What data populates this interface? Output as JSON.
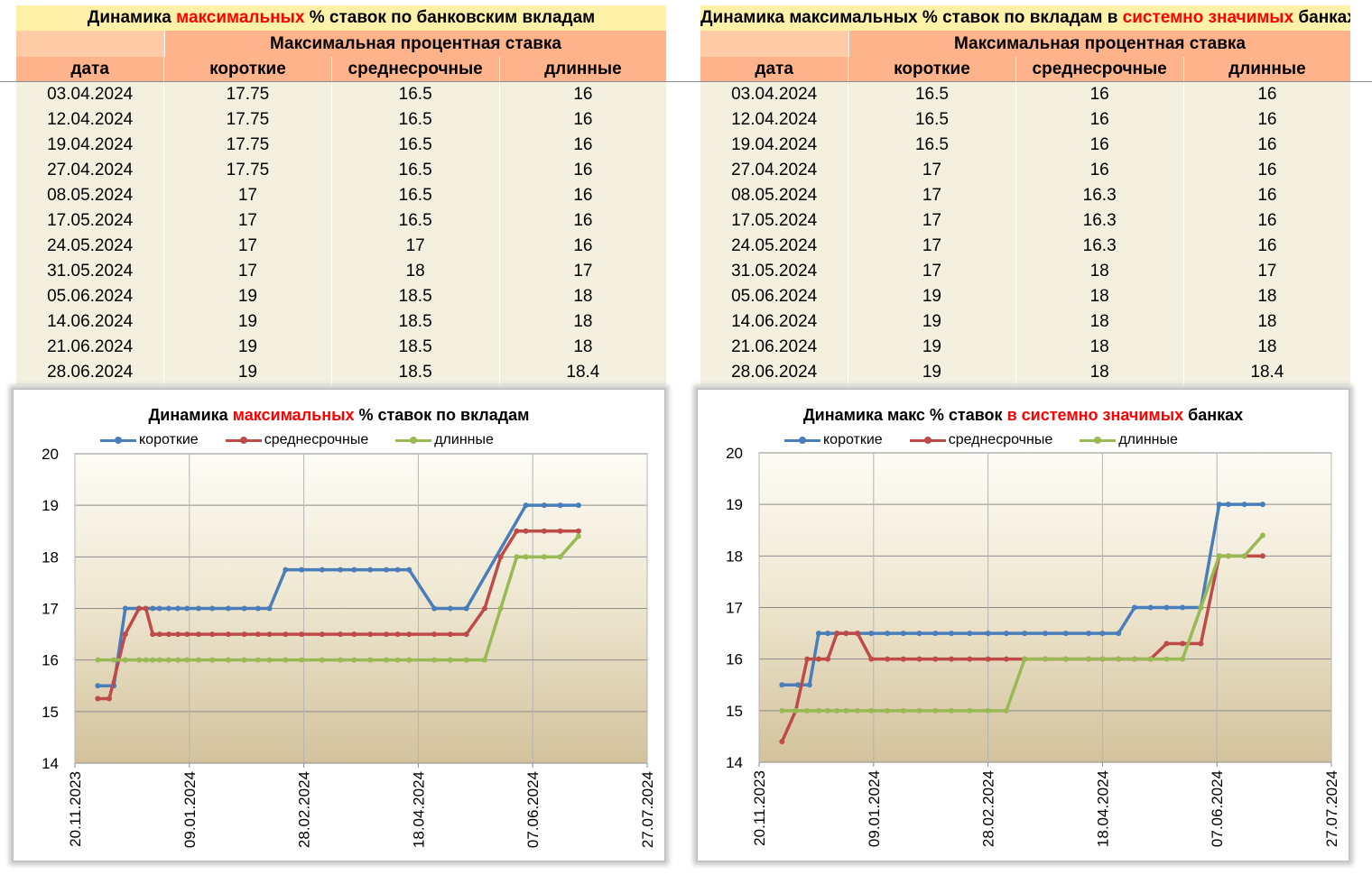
{
  "table_left": {
    "title_prefix": "Динамика ",
    "title_red": "максимальных",
    "title_suffix": " % ставок по банковским вкладам",
    "group_header": "Максимальная процентная ставка",
    "columns": [
      "дата",
      "короткие",
      "среднесрочные",
      "длинные"
    ],
    "rows": [
      [
        "03.04.2024",
        "17.75",
        "16.5",
        "16"
      ],
      [
        "12.04.2024",
        "17.75",
        "16.5",
        "16"
      ],
      [
        "19.04.2024",
        "17.75",
        "16.5",
        "16"
      ],
      [
        "27.04.2024",
        "17.75",
        "16.5",
        "16"
      ],
      [
        "08.05.2024",
        "17",
        "16.5",
        "16"
      ],
      [
        "17.05.2024",
        "17",
        "16.5",
        "16"
      ],
      [
        "24.05.2024",
        "17",
        "17",
        "16"
      ],
      [
        "31.05.2024",
        "17",
        "18",
        "17"
      ],
      [
        "05.06.2024",
        "19",
        "18.5",
        "18"
      ],
      [
        "14.06.2024",
        "19",
        "18.5",
        "18"
      ],
      [
        "21.06.2024",
        "19",
        "18.5",
        "18"
      ],
      [
        "28.06.2024",
        "19",
        "18.5",
        "18.4"
      ]
    ]
  },
  "table_right": {
    "title_prefix": "Динамика максимальных % ставок по вкладам в ",
    "title_red": "системно значимых",
    "title_suffix": " банках",
    "group_header": "Максимальная процентная ставка",
    "columns": [
      "дата",
      "короткие",
      "среднесрочные",
      "длинные"
    ],
    "rows": [
      [
        "03.04.2024",
        "16.5",
        "16",
        "16"
      ],
      [
        "12.04.2024",
        "16.5",
        "16",
        "16"
      ],
      [
        "19.04.2024",
        "16.5",
        "16",
        "16"
      ],
      [
        "27.04.2024",
        "17",
        "16",
        "16"
      ],
      [
        "08.05.2024",
        "17",
        "16.3",
        "16"
      ],
      [
        "17.05.2024",
        "17",
        "16.3",
        "16"
      ],
      [
        "24.05.2024",
        "17",
        "16.3",
        "16"
      ],
      [
        "31.05.2024",
        "17",
        "18",
        "17"
      ],
      [
        "05.06.2024",
        "19",
        "18",
        "18"
      ],
      [
        "14.06.2024",
        "19",
        "18",
        "18"
      ],
      [
        "21.06.2024",
        "19",
        "18",
        "18"
      ],
      [
        "28.06.2024",
        "19",
        "18",
        "18.4"
      ]
    ]
  },
  "chart_data": [
    {
      "type": "line",
      "title_prefix": "Динамика ",
      "title_red": "максимальных",
      "title_suffix": " % ставок по вкладам",
      "x_tick_labels": [
        "20.11.2023",
        "09.01.2024",
        "28.02.2024",
        "18.04.2024",
        "07.06.2024",
        "27.07.2024"
      ],
      "xlim_days": [
        0,
        250
      ],
      "ylim": [
        14,
        20
      ],
      "y_ticks": [
        14,
        15,
        16,
        17,
        18,
        19,
        20
      ],
      "series": [
        {
          "name": "короткие",
          "color": "#4a7ebb",
          "x": [
            10,
            17,
            22,
            28,
            34,
            37,
            41,
            45,
            49,
            54,
            60,
            67,
            74,
            80,
            85,
            92,
            99,
            108,
            116,
            122,
            129,
            136,
            141,
            146,
            157,
            164,
            171,
            197,
            205,
            212,
            220
          ],
          "y": [
            15.5,
            15.5,
            17,
            17,
            17,
            17,
            17,
            17,
            17,
            17,
            17,
            17,
            17,
            17,
            17,
            17.75,
            17.75,
            17.75,
            17.75,
            17.75,
            17.75,
            17.75,
            17.75,
            17.75,
            17,
            17,
            17,
            19,
            19,
            19,
            19
          ]
        },
        {
          "name": "среднесрочные",
          "color": "#be4b48",
          "x": [
            10,
            15,
            22,
            28,
            31,
            34,
            37,
            41,
            45,
            49,
            54,
            60,
            67,
            74,
            80,
            85,
            92,
            99,
            108,
            116,
            122,
            129,
            136,
            141,
            146,
            157,
            164,
            171,
            179,
            186,
            193,
            197,
            205,
            212,
            220
          ],
          "y": [
            15.25,
            15.25,
            16.5,
            17,
            17,
            16.5,
            16.5,
            16.5,
            16.5,
            16.5,
            16.5,
            16.5,
            16.5,
            16.5,
            16.5,
            16.5,
            16.5,
            16.5,
            16.5,
            16.5,
            16.5,
            16.5,
            16.5,
            16.5,
            16.5,
            16.5,
            16.5,
            16.5,
            17,
            18,
            18.5,
            18.5,
            18.5,
            18.5,
            18.5
          ]
        },
        {
          "name": "длинные",
          "color": "#98b954",
          "x": [
            10,
            17,
            22,
            28,
            31,
            34,
            37,
            41,
            45,
            49,
            54,
            60,
            67,
            74,
            80,
            85,
            92,
            99,
            108,
            116,
            122,
            129,
            136,
            141,
            146,
            157,
            164,
            171,
            179,
            186,
            193,
            197,
            205,
            212,
            220
          ],
          "y": [
            16,
            16,
            16,
            16,
            16,
            16,
            16,
            16,
            16,
            16,
            16,
            16,
            16,
            16,
            16,
            16,
            16,
            16,
            16,
            16,
            16,
            16,
            16,
            16,
            16,
            16,
            16,
            16,
            16,
            17,
            18,
            18,
            18,
            18,
            18.4
          ]
        }
      ]
    },
    {
      "type": "line",
      "title_prefix": "Динамика макс % ставок ",
      "title_red": "в системно значимых",
      "title_suffix": " банках",
      "x_tick_labels": [
        "20.11.2023",
        "09.01.2024",
        "28.02.2024",
        "18.04.2024",
        "07.06.2024",
        "27.07.2024"
      ],
      "xlim_days": [
        0,
        250
      ],
      "ylim": [
        14,
        20
      ],
      "y_ticks": [
        14,
        15,
        16,
        17,
        18,
        19,
        20
      ],
      "series": [
        {
          "name": "короткие",
          "color": "#4a7ebb",
          "x": [
            10,
            17,
            22,
            26,
            30,
            34,
            38,
            43,
            49,
            56,
            63,
            70,
            77,
            84,
            92,
            100,
            108,
            116,
            125,
            134,
            144,
            150,
            157,
            164,
            171,
            178,
            185,
            193,
            201,
            205,
            212,
            220
          ],
          "y": [
            15.5,
            15.5,
            15.5,
            16.5,
            16.5,
            16.5,
            16.5,
            16.5,
            16.5,
            16.5,
            16.5,
            16.5,
            16.5,
            16.5,
            16.5,
            16.5,
            16.5,
            16.5,
            16.5,
            16.5,
            16.5,
            16.5,
            16.5,
            17,
            17,
            17,
            17,
            17,
            19,
            19,
            19,
            19
          ]
        },
        {
          "name": "среднесрочные",
          "color": "#be4b48",
          "x": [
            10,
            16,
            21,
            26,
            30,
            34,
            38,
            43,
            49,
            56,
            63,
            70,
            77,
            84,
            92,
            100,
            108,
            116,
            125,
            134,
            144,
            150,
            157,
            164,
            171,
            178,
            185,
            193,
            201,
            205,
            212,
            220
          ],
          "y": [
            14.4,
            15,
            16,
            16,
            16,
            16.5,
            16.5,
            16.5,
            16,
            16,
            16,
            16,
            16,
            16,
            16,
            16,
            16,
            16,
            16,
            16,
            16,
            16,
            16,
            16,
            16,
            16.3,
            16.3,
            16.3,
            18,
            18,
            18,
            18
          ]
        },
        {
          "name": "длинные",
          "color": "#98b954",
          "x": [
            10,
            16,
            21,
            26,
            30,
            34,
            38,
            43,
            49,
            56,
            63,
            70,
            77,
            84,
            92,
            100,
            108,
            116,
            125,
            134,
            144,
            150,
            157,
            164,
            171,
            178,
            185,
            193,
            201,
            205,
            212,
            220
          ],
          "y": [
            15,
            15,
            15,
            15,
            15,
            15,
            15,
            15,
            15,
            15,
            15,
            15,
            15,
            15,
            15,
            15,
            15,
            16,
            16,
            16,
            16,
            16,
            16,
            16,
            16,
            16,
            16,
            17,
            18,
            18,
            18,
            18.4
          ]
        }
      ]
    }
  ]
}
